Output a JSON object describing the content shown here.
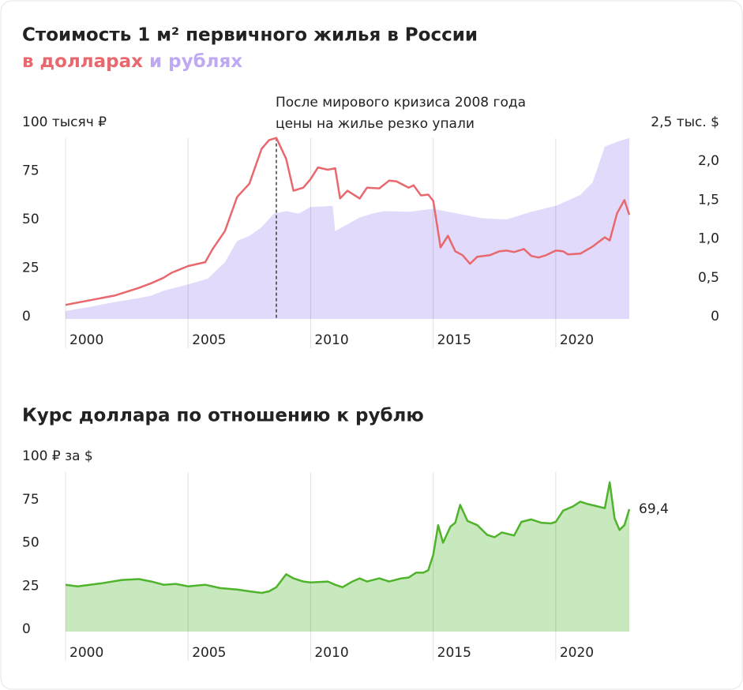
{
  "chart_data": [
    {
      "type": "area_line",
      "title": "Стоимость 1 м² первичного жилья в России",
      "annotation": [
        "После мирового кризиса 2008 года",
        "цены на жилье резко упали"
      ],
      "xlim": [
        2000,
        2023
      ],
      "xticks": [
        2000,
        2005,
        2010,
        2015,
        2020
      ],
      "ylim": [
        0,
        100
      ],
      "yticks": [
        0,
        25,
        50,
        75,
        {
          "value": 100,
          "label": "100 тысяч ₽"
        }
      ],
      "y2lim": [
        0,
        2.5
      ],
      "y2ticks": [
        0,
        {
          "value": 0.5,
          "label": "0,5"
        },
        {
          "value": 1,
          "label": "1,0"
        },
        {
          "value": 1.5,
          "label": "1,5"
        },
        {
          "value": 2,
          "label": "2,0"
        },
        {
          "value": 2.5,
          "label": "2,5 тыс. $"
        }
      ],
      "grid": true,
      "series": [
        {
          "name": "в долларах",
          "color": "#e8686e",
          "axis": "y2",
          "kind": "line",
          "x": [
            2000,
            2001,
            2002,
            2003,
            2003.5,
            2004,
            2004.3,
            2005,
            2005.7,
            2006,
            2006.5,
            2007,
            2007.5,
            2008,
            2008.3,
            2008.6,
            2009,
            2009.3,
            2009.7,
            2010,
            2010.3,
            2010.7,
            2011,
            2011.2,
            2011.5,
            2012,
            2012.3,
            2012.8,
            2013.2,
            2013.5,
            2014,
            2014.2,
            2014.5,
            2014.8,
            2015,
            2015.3,
            2015.6,
            2015.9,
            2016.2,
            2016.5,
            2016.8,
            2017.3,
            2017.7,
            2018,
            2018.3,
            2018.7,
            2019,
            2019.3,
            2019.6,
            2020,
            2020.3,
            2020.5,
            2021,
            2021.5,
            2022,
            2022.2,
            2022.5,
            2022.8,
            2023
          ],
          "values": [
            0.15,
            0.21,
            0.27,
            0.37,
            0.43,
            0.5,
            0.56,
            0.65,
            0.7,
            0.87,
            1.1,
            1.54,
            1.71,
            2.16,
            2.27,
            2.3,
            2.03,
            1.62,
            1.66,
            1.77,
            1.92,
            1.89,
            1.91,
            1.52,
            1.62,
            1.52,
            1.66,
            1.65,
            1.75,
            1.74,
            1.66,
            1.69,
            1.56,
            1.57,
            1.49,
            0.89,
            1.04,
            0.84,
            0.79,
            0.68,
            0.77,
            0.79,
            0.84,
            0.85,
            0.83,
            0.87,
            0.78,
            0.76,
            0.79,
            0.85,
            0.84,
            0.8,
            0.81,
            0.9,
            1.02,
            0.98,
            1.33,
            1.5,
            1.31
          ]
        },
        {
          "name": "и рублях",
          "color": "#e2dafa",
          "axis": "y",
          "kind": "area",
          "x": [
            2000,
            2001,
            2002,
            2003,
            2003.5,
            2004,
            2005,
            2005.8,
            2006.5,
            2007,
            2007.5,
            2008,
            2008.5,
            2009,
            2009.5,
            2010,
            2010.9,
            2011,
            2012,
            2012.5,
            2013,
            2014,
            2015,
            2016,
            2017,
            2018,
            2019,
            2020,
            2021,
            2021.5,
            2022,
            2022.5,
            2023
          ],
          "values": [
            2.9,
            5,
            7.5,
            9.5,
            10.8,
            13.3,
            16.6,
            19.5,
            28,
            39,
            41.5,
            46,
            53,
            54.3,
            53,
            56.4,
            57,
            44,
            51,
            53,
            54.3,
            54,
            55.5,
            53,
            50.6,
            50,
            54,
            57,
            62.6,
            69,
            87.5,
            90,
            92
          ]
        }
      ]
    },
    {
      "type": "area_line",
      "title": "Курс доллара по отношению к рублю",
      "xlim": [
        2000,
        2023
      ],
      "xticks": [
        2000,
        2005,
        2010,
        2015,
        2020
      ],
      "ylim": [
        0,
        100
      ],
      "yticks": [
        0,
        25,
        50,
        75,
        {
          "value": 100,
          "label": "100 ₽ за $"
        }
      ],
      "grid": true,
      "series": [
        {
          "name": null,
          "color": "#4fb32b",
          "fill": "#c8e8bd",
          "axis": "y",
          "kind": "line_area",
          "x": [
            2000,
            2000.5,
            2001.5,
            2002.3,
            2003,
            2003.5,
            2004,
            2004.5,
            2005,
            2005.7,
            2006.3,
            2007,
            2007.5,
            2008,
            2008.3,
            2008.6,
            2009,
            2009.3,
            2009.7,
            2010,
            2010.7,
            2011,
            2011.3,
            2011.7,
            2012,
            2012.3,
            2012.8,
            2013.2,
            2013.7,
            2014,
            2014.3,
            2014.6,
            2014.8,
            2015,
            2015.2,
            2015.4,
            2015.7,
            2015.9,
            2016.1,
            2016.4,
            2016.8,
            2017.2,
            2017.5,
            2017.8,
            2018.3,
            2018.6,
            2019,
            2019.4,
            2019.8,
            2020,
            2020.3,
            2020.7,
            2021,
            2021.3,
            2021.6,
            2022,
            2022.2,
            2022.4,
            2022.6,
            2022.8,
            2023
          ],
          "values": [
            25.7,
            24.8,
            26.6,
            28.5,
            29,
            27.6,
            25.7,
            26.2,
            24.8,
            25.7,
            23.8,
            22.9,
            21.9,
            21,
            21.9,
            24.3,
            31.8,
            29.4,
            27.6,
            27.1,
            27.6,
            25.7,
            24.3,
            27.6,
            29.4,
            27.6,
            29.4,
            27.6,
            29.4,
            29.9,
            32.7,
            32.7,
            34.1,
            43,
            60.2,
            50,
            59.3,
            61.6,
            71.9,
            62.6,
            60.2,
            54.6,
            53.2,
            56,
            54.2,
            62.1,
            63.5,
            61.6,
            61.2,
            62.1,
            68.6,
            71,
            73.8,
            72.4,
            71.4,
            70,
            85,
            64,
            57.4,
            60.2,
            69.4
          ],
          "value_labels": [
            null,
            null,
            null,
            null,
            null,
            null,
            null,
            null,
            null,
            null,
            null,
            null,
            null,
            null,
            null,
            null,
            null,
            null,
            null,
            null,
            null,
            null,
            null,
            null,
            null,
            null,
            null,
            null,
            null,
            null,
            null,
            null,
            null,
            null,
            null,
            null,
            null,
            null,
            null,
            null,
            null,
            null,
            null,
            null,
            null,
            null,
            null,
            null,
            null,
            null,
            null,
            null,
            null,
            null,
            null,
            null,
            null,
            null,
            null,
            null,
            "69,4"
          ]
        }
      ]
    }
  ]
}
